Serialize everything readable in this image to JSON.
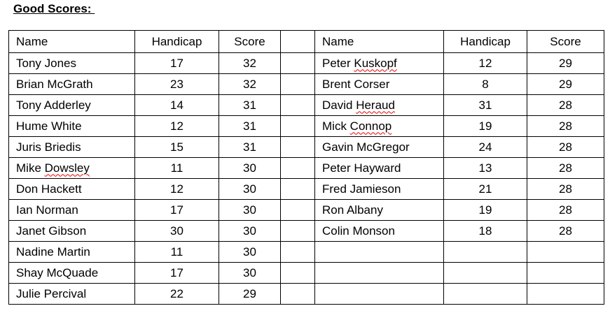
{
  "title": "Good Scores: ",
  "headers": [
    "Name",
    "Handicap",
    "Score",
    "",
    "Name",
    "Handicap",
    "Score"
  ],
  "left": [
    [
      "Tony Jones",
      "17",
      "32"
    ],
    [
      "Brian McGrath",
      "23",
      "32"
    ],
    [
      "Tony Adderley",
      "14",
      "31"
    ],
    [
      "Hume White",
      "12",
      "31"
    ],
    [
      "Juris Briedis",
      "15",
      "31"
    ],
    [
      "Mike Dowsley",
      "11",
      "30"
    ],
    [
      "Don Hackett",
      "12",
      "30"
    ],
    [
      "Ian Norman",
      "17",
      "30"
    ],
    [
      "Janet Gibson",
      "30",
      "30"
    ],
    [
      "Nadine Martin",
      "11",
      "30"
    ],
    [
      "Shay McQuade",
      "17",
      "30"
    ],
    [
      "Julie Percival",
      "22",
      "29"
    ]
  ],
  "right": [
    [
      "Peter Kuskopf",
      "12",
      "29"
    ],
    [
      "Brent Corser",
      "8",
      "29"
    ],
    [
      "David Heraud",
      "31",
      "28"
    ],
    [
      "Mick Connop",
      "19",
      "28"
    ],
    [
      "Gavin McGregor",
      "24",
      "28"
    ],
    [
      "Peter Hayward",
      "13",
      "28"
    ],
    [
      "Fred Jamieson",
      "21",
      "28"
    ],
    [
      "Ron Albany",
      "19",
      "28"
    ],
    [
      "Colin Monson",
      "18",
      "28"
    ]
  ],
  "spellcheck_words": [
    "Dowsley",
    "Kuskopf",
    "Heraud",
    "Connop"
  ]
}
